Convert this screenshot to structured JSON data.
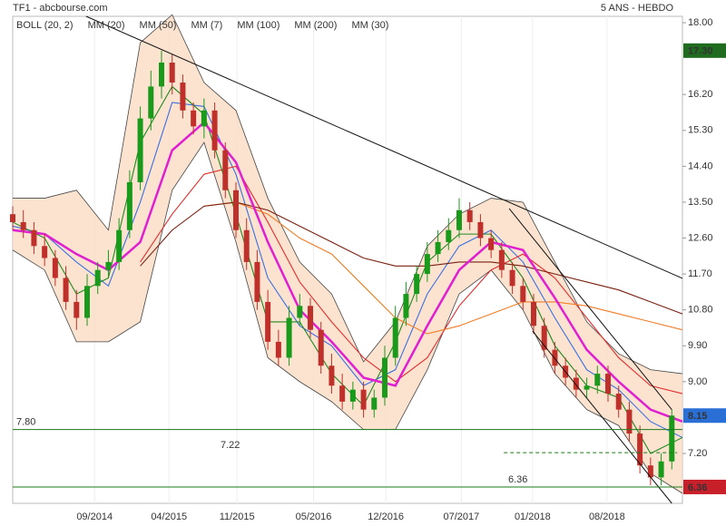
{
  "chart_data": {
    "type": "candlestick",
    "title": "TF1 - abcbourse.com",
    "subtitle": "5 ANS - HEBDO",
    "xlim": [
      0,
      63
    ],
    "xticks": [
      {
        "value": 7.7,
        "label": "09/2014"
      },
      {
        "value": 14.7,
        "label": "04/2015"
      },
      {
        "value": 21.1,
        "label": "11/2015"
      },
      {
        "value": 28.3,
        "label": "05/2016"
      },
      {
        "value": 35.1,
        "label": "12/2016"
      },
      {
        "value": 42.2,
        "label": "07/2017"
      },
      {
        "value": 48.9,
        "label": "01/2018"
      },
      {
        "value": 55.9,
        "label": "08/2018"
      }
    ],
    "ylim": [
      5.95,
      18.16
    ],
    "yticks": [
      {
        "value": 18,
        "label": "18.00"
      },
      {
        "value": 16.2,
        "label": "16.20"
      },
      {
        "value": 15.3,
        "label": "15.30"
      },
      {
        "value": 14.4,
        "label": "14.40"
      },
      {
        "value": 13.5,
        "label": "13.50"
      },
      {
        "value": 12.6,
        "label": "12.60"
      },
      {
        "value": 11.7,
        "label": "11.70"
      },
      {
        "value": 10.8,
        "label": "10.80"
      },
      {
        "value": 9.9,
        "label": "9.90"
      },
      {
        "value": 9,
        "label": "9.00"
      },
      {
        "value": 7.2,
        "label": "7.20"
      }
    ],
    "grid": true,
    "candles": {
      "up_color": "#1a9a1a",
      "down_color": "#c0302a",
      "x": [
        0,
        1,
        2,
        3,
        4,
        5,
        6,
        7,
        8,
        9,
        10,
        11,
        12,
        13,
        14,
        15,
        16,
        17,
        18,
        19,
        20,
        21,
        22,
        23,
        24,
        25,
        26,
        27,
        28,
        29,
        30,
        31,
        32,
        33,
        34,
        35,
        36,
        37,
        38,
        39,
        40,
        41,
        42,
        43,
        44,
        45,
        46,
        47,
        48,
        49,
        50,
        51,
        52,
        53,
        54,
        55,
        56,
        57,
        58,
        59,
        60,
        61,
        62
      ],
      "open": [
        13.2,
        13.0,
        12.8,
        12.4,
        12.1,
        11.6,
        11.0,
        10.6,
        11.4,
        11.8,
        12.0,
        12.8,
        14.0,
        15.6,
        16.4,
        17.0,
        16.5,
        15.8,
        15.4,
        15.8,
        14.8,
        13.8,
        12.8,
        12.0,
        11.0,
        10.0,
        9.6,
        10.6,
        10.9,
        10.3,
        9.4,
        8.9,
        8.5,
        8.8,
        8.3,
        8.6,
        9.6,
        10.6,
        11.2,
        11.7,
        12.2,
        12.5,
        12.8,
        13.3,
        13.0,
        12.6,
        12.3,
        11.8,
        11.4,
        11.0,
        10.4,
        9.8,
        9.4,
        9.1,
        8.8,
        8.9,
        9.2,
        8.7,
        8.3,
        7.7,
        6.9,
        6.6,
        7.0
      ],
      "high": [
        13.4,
        13.3,
        13.0,
        12.7,
        12.3,
        11.9,
        11.3,
        11.7,
        12.0,
        12.3,
        13.1,
        14.3,
        15.9,
        16.8,
        17.3,
        17.2,
        16.7,
        16.0,
        16.1,
        16.0,
        15.0,
        14.0,
        13.1,
        12.3,
        11.3,
        10.3,
        10.9,
        11.2,
        11.1,
        10.5,
        9.7,
        9.2,
        9.0,
        9.0,
        8.8,
        9.9,
        10.9,
        11.5,
        11.9,
        12.5,
        12.8,
        13.1,
        13.6,
        13.5,
        13.2,
        12.8,
        12.5,
        12.0,
        11.6,
        11.2,
        10.6,
        10.0,
        9.6,
        9.3,
        9.1,
        9.4,
        9.4,
        8.9,
        8.5,
        7.9,
        7.1,
        7.2,
        8.3
      ],
      "low": [
        12.8,
        12.6,
        12.2,
        11.9,
        11.4,
        10.8,
        10.3,
        10.4,
        11.2,
        11.6,
        11.8,
        12.6,
        13.8,
        15.3,
        16.1,
        16.2,
        15.6,
        15.2,
        15.1,
        14.6,
        13.6,
        12.6,
        11.8,
        10.8,
        9.8,
        9.4,
        9.4,
        10.4,
        10.1,
        9.2,
        8.7,
        8.3,
        8.3,
        8.1,
        8.1,
        8.4,
        9.4,
        10.4,
        11.0,
        11.5,
        12.0,
        12.3,
        12.6,
        12.8,
        12.4,
        12.1,
        11.6,
        11.2,
        10.8,
        10.2,
        9.6,
        9.2,
        8.9,
        8.6,
        8.6,
        8.7,
        8.5,
        8.1,
        7.5,
        6.7,
        6.4,
        6.4,
        6.8
      ],
      "close": [
        13.0,
        12.8,
        12.4,
        12.1,
        11.6,
        11.0,
        10.6,
        11.4,
        11.8,
        12.0,
        12.8,
        14.0,
        15.6,
        16.4,
        17.0,
        16.5,
        15.8,
        15.4,
        15.8,
        14.8,
        13.8,
        12.8,
        12.0,
        11.0,
        10.0,
        9.6,
        10.6,
        10.9,
        10.3,
        9.4,
        8.9,
        8.5,
        8.8,
        8.3,
        8.6,
        9.6,
        10.6,
        11.2,
        11.7,
        12.2,
        12.5,
        12.8,
        13.3,
        13.0,
        12.6,
        12.3,
        11.8,
        11.4,
        11.0,
        10.4,
        9.8,
        9.4,
        9.1,
        8.8,
        8.9,
        9.2,
        8.7,
        8.3,
        7.7,
        6.9,
        6.6,
        7.0,
        8.15
      ]
    },
    "x": [
      0,
      3,
      6,
      9,
      12,
      15,
      18,
      21,
      24,
      27,
      30,
      33,
      36,
      39,
      42,
      45,
      48,
      51,
      54,
      57,
      60,
      63
    ],
    "bollinger": {
      "name": "BOLL (20, 2)",
      "color": "#444444",
      "fill": "#fbd9c0",
      "upper": [
        13.6,
        13.6,
        13.8,
        12.8,
        17.5,
        18.2,
        16.5,
        15.8,
        13.6,
        12.0,
        11.2,
        9.5,
        10.5,
        12.4,
        13.2,
        13.6,
        13.5,
        12.0,
        10.5,
        9.7,
        9.3,
        9.2
      ],
      "lower": [
        12.3,
        11.8,
        10.0,
        10.0,
        10.5,
        13.8,
        15.0,
        12.5,
        9.6,
        9.0,
        8.5,
        7.8,
        7.8,
        9.3,
        11.2,
        11.8,
        10.8,
        9.2,
        8.3,
        7.9,
        6.7,
        6.2
      ]
    },
    "series": [
      {
        "name": "MM (20)",
        "color": "#3a6fe0",
        "values": [
          12.9,
          12.7,
          12.0,
          11.4,
          13.5,
          16.0,
          15.9,
          14.2,
          11.6,
          10.4,
          9.9,
          8.9,
          9.3,
          11.2,
          12.4,
          12.8,
          12.0,
          10.6,
          9.3,
          8.8,
          8.0,
          7.6
        ]
      },
      {
        "name": "MM (50)",
        "color": "#e03030",
        "values": [
          null,
          null,
          null,
          null,
          12.0,
          13.2,
          14.2,
          14.4,
          13.0,
          11.5,
          10.5,
          9.6,
          9.0,
          9.6,
          10.9,
          11.8,
          12.2,
          11.6,
          10.6,
          9.6,
          8.9,
          8.7
        ]
      },
      {
        "name": "MM (7)",
        "color": "#1e8a1e",
        "values": [
          13.0,
          12.6,
          11.2,
          11.6,
          15.0,
          16.4,
          15.7,
          13.2,
          10.5,
          10.5,
          9.2,
          8.4,
          10.0,
          12.0,
          12.7,
          12.7,
          11.6,
          9.9,
          8.9,
          8.6,
          7.2,
          7.6
        ]
      },
      {
        "name": "MM (100)",
        "color": "#f07d28",
        "values": [
          null,
          null,
          null,
          null,
          null,
          null,
          13.4,
          13.5,
          13.2,
          12.6,
          12.2,
          11.4,
          10.6,
          10.2,
          10.4,
          10.7,
          11.0,
          11.0,
          10.9,
          10.7,
          10.5,
          10.3
        ]
      },
      {
        "name": "MM (200)",
        "color": "#7a1f10",
        "values": [
          null,
          null,
          null,
          null,
          11.9,
          12.8,
          13.4,
          13.5,
          13.3,
          12.9,
          12.5,
          12.1,
          11.9,
          11.9,
          12.0,
          12.0,
          11.9,
          11.7,
          11.5,
          11.3,
          11.0,
          10.7
        ]
      },
      {
        "name": "MM (30)",
        "color": "#e020d0",
        "values": [
          12.8,
          12.7,
          12.2,
          11.8,
          12.5,
          14.8,
          15.5,
          14.5,
          12.5,
          10.8,
          10.0,
          9.1,
          8.9,
          10.4,
          11.8,
          12.5,
          12.3,
          11.1,
          9.8,
          9.0,
          8.3,
          8.0
        ]
      }
    ],
    "trendlines": [
      {
        "x": [
          6.9,
          63
        ],
        "y": [
          18.16,
          11.59
        ]
      },
      {
        "x": [
          46.7,
          62
        ],
        "y": [
          13.34,
          8.3
        ]
      },
      {
        "x": [
          48.9,
          62
        ],
        "y": [
          10.27,
          5.95
        ]
      }
    ],
    "levels": [
      {
        "value": 7.8,
        "label": "7.80",
        "color": "#1a7a1a"
      },
      {
        "value": 7.22,
        "label": "7.22",
        "color": "#1a7a1a",
        "dashed": true,
        "xrange": [
          46.2,
          62.5
        ]
      },
      {
        "value": 6.36,
        "label": "6.36",
        "color": "#1a7a1a"
      }
    ],
    "badges": [
      {
        "value": 17.3,
        "label": "17.30",
        "color": "#1f6b1f"
      },
      {
        "value": 8.15,
        "label": "8.15",
        "color": "#2a6fd6"
      },
      {
        "value": 6.36,
        "label": "6.36",
        "color": "#c8202a"
      }
    ]
  }
}
